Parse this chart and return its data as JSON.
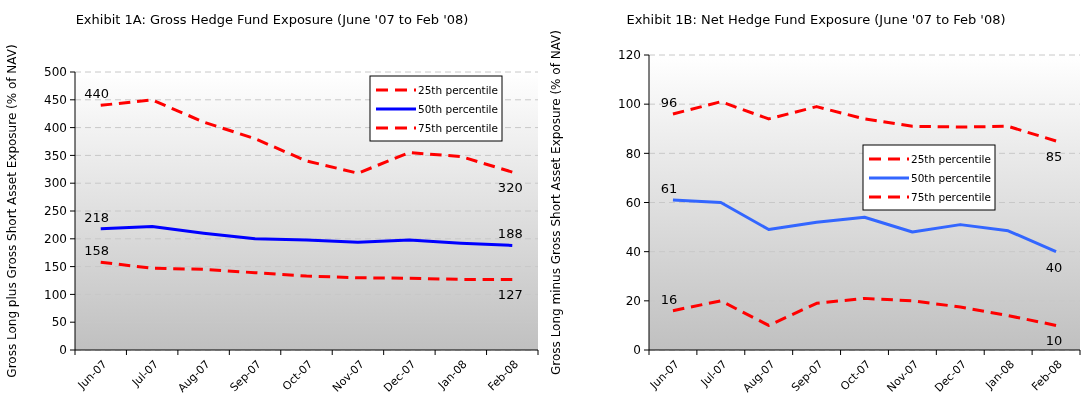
{
  "chart_data": [
    {
      "type": "line",
      "title": "Exhibit 1A: Gross Hedge Fund Exposure (June '07 to Feb '08)",
      "ylabel": "Gross Long plus Gross Short Asset Exposure (% of NAV)",
      "categories": [
        "Jun-07",
        "Jul-07",
        "Aug-07",
        "Sep-07",
        "Oct-07",
        "Nov-07",
        "Dec-07",
        "Jan-08",
        "Feb-08"
      ],
      "ylim": [
        0,
        500
      ],
      "yticks": [
        0,
        50,
        100,
        150,
        200,
        250,
        300,
        350,
        400,
        450,
        500
      ],
      "grid": "y",
      "legend": "top right",
      "marker": "none",
      "series": [
        {
          "name": "25th percentile",
          "color": "#ff0000",
          "line_style": "dashed",
          "values": [
            158,
            147,
            145,
            139,
            133,
            130,
            129,
            127,
            127
          ],
          "value_labels": [
            "158",
            null,
            null,
            null,
            null,
            null,
            null,
            null,
            "127"
          ]
        },
        {
          "name": "50th percentile",
          "color": "#0000ff",
          "line_style": "solid",
          "values": [
            218,
            222,
            210,
            200,
            198,
            194,
            198,
            192,
            188
          ],
          "value_labels": [
            "218",
            null,
            null,
            null,
            null,
            null,
            null,
            null,
            "188"
          ]
        },
        {
          "name": "75th percentile",
          "color": "#ff0000",
          "line_style": "dashed",
          "values": [
            440,
            450,
            410,
            380,
            340,
            318,
            355,
            348,
            320
          ],
          "value_labels": [
            "440",
            null,
            null,
            null,
            null,
            null,
            null,
            null,
            "320"
          ]
        }
      ]
    },
    {
      "type": "line",
      "title": "Exhibit 1B: Net Hedge Fund Exposure (June '07 to Feb '08)",
      "ylabel": "Gross Long minus Gross Short Asset Exposure (% of NAV)",
      "categories": [
        "Jun-07",
        "Jul-07",
        "Aug-07",
        "Sep-07",
        "Oct-07",
        "Nov-07",
        "Dec-07",
        "Jan-08",
        "Feb-08"
      ],
      "ylim": [
        0,
        120
      ],
      "yticks": [
        0,
        20,
        40,
        60,
        80,
        100,
        120
      ],
      "grid": "y",
      "legend": "right",
      "marker": "none",
      "series": [
        {
          "name": "25th percentile",
          "color": "#ff0000",
          "line_style": "dashed",
          "values": [
            16,
            20,
            10,
            19,
            21,
            20,
            17.5,
            14,
            10
          ],
          "value_labels": [
            "16",
            null,
            null,
            null,
            null,
            null,
            null,
            null,
            "10"
          ]
        },
        {
          "name": "50th percentile",
          "color": "#3366ff",
          "line_style": "solid",
          "values": [
            61,
            60,
            49,
            52,
            54,
            48,
            51,
            48.5,
            40
          ],
          "value_labels": [
            "61",
            null,
            null,
            null,
            null,
            null,
            null,
            null,
            "40"
          ]
        },
        {
          "name": "75th percentile",
          "color": "#ff0000",
          "line_style": "dashed",
          "values": [
            96,
            101,
            94,
            99,
            94,
            91,
            90.7,
            91,
            85
          ],
          "value_labels": [
            "96",
            null,
            null,
            null,
            null,
            null,
            null,
            null,
            "85"
          ]
        }
      ]
    }
  ]
}
